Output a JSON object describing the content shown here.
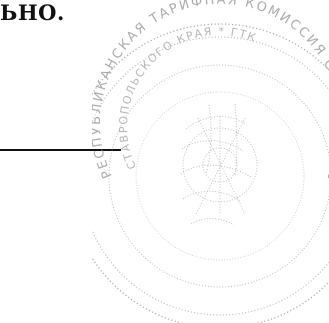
{
  "document": {
    "text_fragment": "ЬНО.",
    "stamp": {
      "outer_text": "РЕСПУБЛИКАНСКАЯ ТАРИФНАЯ КОМИССИЯ СТАВРОПОЛЬСКОГО КРАЯ",
      "inner_text": "СТАВРОПОЛЬСКОГО КРАЯ * ГТК",
      "ink_color": "#8a8a8a"
    },
    "line_color": "#111111"
  }
}
